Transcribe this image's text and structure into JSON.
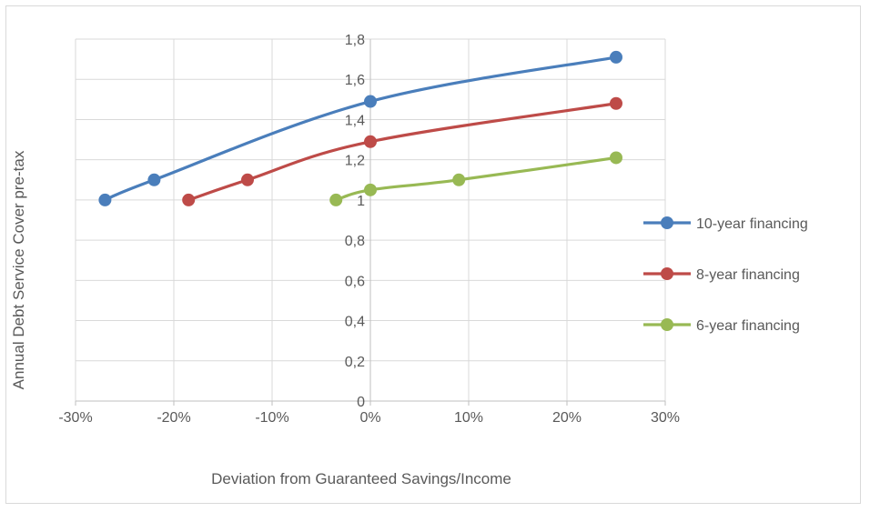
{
  "chart_data": {
    "type": "line",
    "title": "",
    "xlabel": "Deviation from Guaranteed Savings/Income",
    "ylabel": "Annual Debt Service Cover pre-tax",
    "xlim": [
      -30,
      30
    ],
    "ylim": [
      0,
      1.8
    ],
    "x_ticks": [
      -30,
      -20,
      -10,
      0,
      10,
      20,
      30
    ],
    "x_tick_labels": [
      "-30%",
      "-20%",
      "-10%",
      "0%",
      "10%",
      "20%",
      "30%"
    ],
    "y_ticks": [
      0,
      0.2,
      0.4,
      0.6,
      0.8,
      1.0,
      1.2,
      1.4,
      1.6,
      1.8
    ],
    "y_tick_labels": [
      "0",
      "0,2",
      "0,4",
      "0,6",
      "0,8",
      "1",
      "1,2",
      "1,4",
      "1,6",
      "1,8"
    ],
    "grid": true,
    "legend_position": "right",
    "series": [
      {
        "name": "10-year financing",
        "color": "#4a7ebb",
        "points": [
          [
            -27,
            1.0
          ],
          [
            -22,
            1.1
          ],
          [
            0,
            1.49
          ],
          [
            25,
            1.71
          ]
        ]
      },
      {
        "name": "8-year financing",
        "color": "#be4b48",
        "points": [
          [
            -18.5,
            1.0
          ],
          [
            -12.5,
            1.1
          ],
          [
            0,
            1.29
          ],
          [
            25,
            1.48
          ]
        ]
      },
      {
        "name": "6-year financing",
        "color": "#98b954",
        "points": [
          [
            -3.5,
            1.0
          ],
          [
            0,
            1.05
          ],
          [
            9,
            1.1
          ],
          [
            25,
            1.21
          ]
        ]
      }
    ]
  }
}
